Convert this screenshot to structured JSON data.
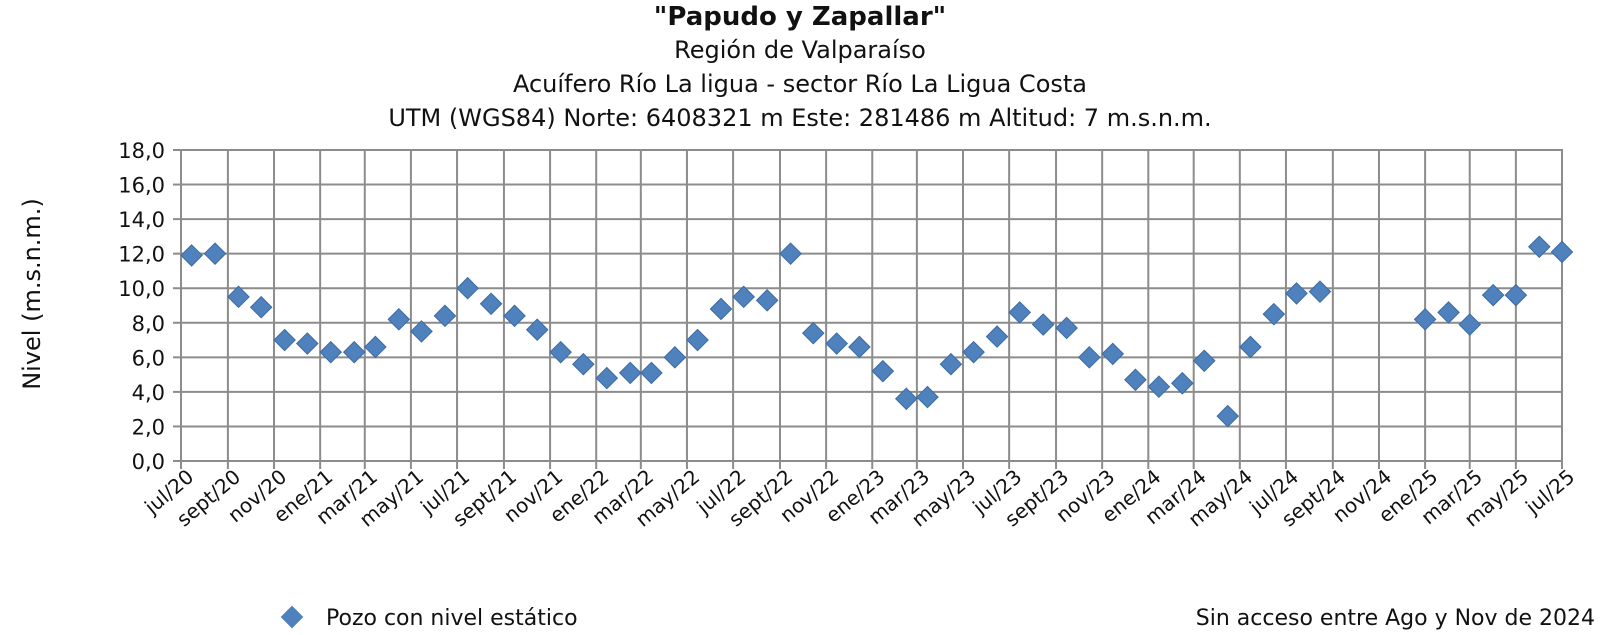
{
  "chart_data": {
    "type": "scatter",
    "title": "\"Papudo y Zapallar\"",
    "subtitles": [
      "Región de Valparaíso",
      "Acuífero Río La ligua - sector Río La Ligua Costa",
      "UTM (WGS84) Norte: 6408321 m Este: 281486 m   Altitud: 7 m.s.n.m."
    ],
    "ylabel": "Nivel (m.s.n.m.)",
    "xlabel": "",
    "ylim": [
      0,
      18
    ],
    "y_ticks": [
      "0,0",
      "2,0",
      "4,0",
      "6,0",
      "8,0",
      "10,0",
      "12,0",
      "14,0",
      "16,0",
      "18,0"
    ],
    "x_range": [
      "2020-07",
      "2025-07"
    ],
    "x_ticks": [
      "jul/20",
      "sept/20",
      "nov/20",
      "ene/21",
      "mar/21",
      "may/21",
      "jul/21",
      "sept/21",
      "nov/21",
      "ene/22",
      "mar/22",
      "may/22",
      "jul/22",
      "sept/22",
      "nov/22",
      "ene/23",
      "mar/23",
      "may/23",
      "jul/23",
      "sept/23",
      "nov/23",
      "ene/24",
      "mar/24",
      "may/24",
      "jul/24",
      "sept/24",
      "nov/24",
      "ene/25",
      "mar/25",
      "may/25",
      "jul/25"
    ],
    "grid": true,
    "legend_position": "bottom-left",
    "note": "Sin acceso entre Ago y Nov de 2024",
    "series": [
      {
        "name": "Pozo con nivel estático",
        "color": "#4f81bd",
        "marker": "diamond",
        "points": [
          {
            "x": "2020-07-15",
            "y": 11.9
          },
          {
            "x": "2020-08-15",
            "y": 12.0
          },
          {
            "x": "2020-09-15",
            "y": 9.5
          },
          {
            "x": "2020-10-15",
            "y": 8.9
          },
          {
            "x": "2020-11-15",
            "y": 7.0
          },
          {
            "x": "2020-12-15",
            "y": 6.8
          },
          {
            "x": "2021-01-15",
            "y": 6.3
          },
          {
            "x": "2021-02-15",
            "y": 6.3
          },
          {
            "x": "2021-03-15",
            "y": 6.6
          },
          {
            "x": "2021-04-15",
            "y": 8.2
          },
          {
            "x": "2021-05-15",
            "y": 7.5
          },
          {
            "x": "2021-06-15",
            "y": 8.4
          },
          {
            "x": "2021-07-15",
            "y": 10.0
          },
          {
            "x": "2021-08-15",
            "y": 9.1
          },
          {
            "x": "2021-09-15",
            "y": 8.4
          },
          {
            "x": "2021-10-15",
            "y": 7.6
          },
          {
            "x": "2021-11-15",
            "y": 6.3
          },
          {
            "x": "2021-12-15",
            "y": 5.6
          },
          {
            "x": "2022-01-15",
            "y": 4.8
          },
          {
            "x": "2022-02-15",
            "y": 5.1
          },
          {
            "x": "2022-03-15",
            "y": 5.1
          },
          {
            "x": "2022-04-15",
            "y": 6.0
          },
          {
            "x": "2022-05-15",
            "y": 7.0
          },
          {
            "x": "2022-06-15",
            "y": 8.8
          },
          {
            "x": "2022-07-15",
            "y": 9.5
          },
          {
            "x": "2022-08-15",
            "y": 9.3
          },
          {
            "x": "2022-09-15",
            "y": 12.0
          },
          {
            "x": "2022-10-15",
            "y": 7.4
          },
          {
            "x": "2022-11-15",
            "y": 6.8
          },
          {
            "x": "2022-12-15",
            "y": 6.6
          },
          {
            "x": "2023-01-15",
            "y": 5.2
          },
          {
            "x": "2023-02-15",
            "y": 3.6
          },
          {
            "x": "2023-03-15",
            "y": 3.7
          },
          {
            "x": "2023-04-15",
            "y": 5.6
          },
          {
            "x": "2023-05-15",
            "y": 6.3
          },
          {
            "x": "2023-06-15",
            "y": 7.2
          },
          {
            "x": "2023-07-15",
            "y": 8.6
          },
          {
            "x": "2023-08-15",
            "y": 7.9
          },
          {
            "x": "2023-09-15",
            "y": 7.7
          },
          {
            "x": "2023-10-15",
            "y": 6.0
          },
          {
            "x": "2023-11-15",
            "y": 6.2
          },
          {
            "x": "2023-12-15",
            "y": 4.7
          },
          {
            "x": "2024-01-15",
            "y": 4.3
          },
          {
            "x": "2024-02-15",
            "y": 4.5
          },
          {
            "x": "2024-03-15",
            "y": 5.8
          },
          {
            "x": "2024-04-15",
            "y": 2.6
          },
          {
            "x": "2024-05-15",
            "y": 6.6
          },
          {
            "x": "2024-06-15",
            "y": 8.5
          },
          {
            "x": "2024-07-15",
            "y": 9.7
          },
          {
            "x": "2024-08-15",
            "y": 9.8
          },
          {
            "x": "2025-01-01",
            "y": 8.2
          },
          {
            "x": "2025-02-01",
            "y": 8.6
          },
          {
            "x": "2025-03-01",
            "y": 7.9
          },
          {
            "x": "2025-04-01",
            "y": 9.6
          },
          {
            "x": "2025-05-01",
            "y": 9.6
          },
          {
            "x": "2025-06-01",
            "y": 12.4
          },
          {
            "x": "2025-07-01",
            "y": 12.1
          }
        ]
      }
    ]
  }
}
